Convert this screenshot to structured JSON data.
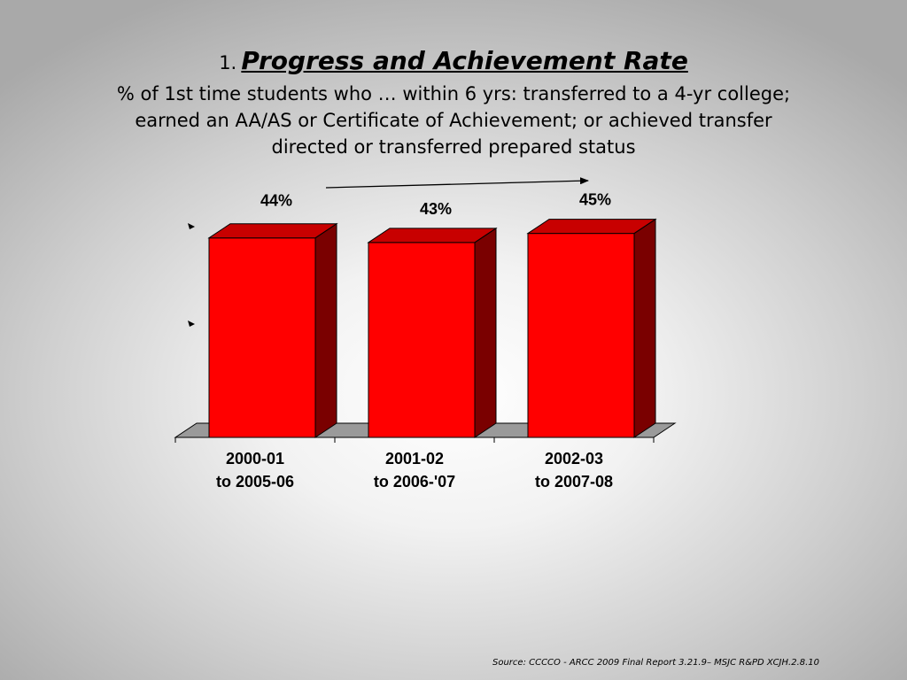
{
  "slide": {
    "title_number": "1.",
    "title": "Progress and Achievement Rate",
    "subtitle": "% of 1st time students who … within 6 yrs:  transferred to a 4-yr college; earned an AA/AS or Certificate of Achievement; or achieved transfer directed or transferred prepared status",
    "source": "Source: CCCCO - ARCC 2009 Final Report 3.21.9– MSJC R&PD XCJH.2.8.10"
  },
  "chart_data": {
    "type": "bar",
    "style": "3d",
    "categories": [
      [
        "2000-01",
        "to 2005-06"
      ],
      [
        "2001-02",
        "to 2006-'07"
      ],
      [
        "2002-03",
        "to 2007-08"
      ]
    ],
    "values": [
      44,
      43,
      45
    ],
    "data_labels": [
      "44%",
      "43%",
      "45%"
    ],
    "unit": "%",
    "ylim": [
      0,
      50
    ],
    "grid": false,
    "legend": "none",
    "colors": {
      "bar_front": "#ff0000",
      "bar_side": "#7a0000",
      "bar_top": "#c80000",
      "floor": "#9a9a9a"
    },
    "trend_arrow": true
  }
}
